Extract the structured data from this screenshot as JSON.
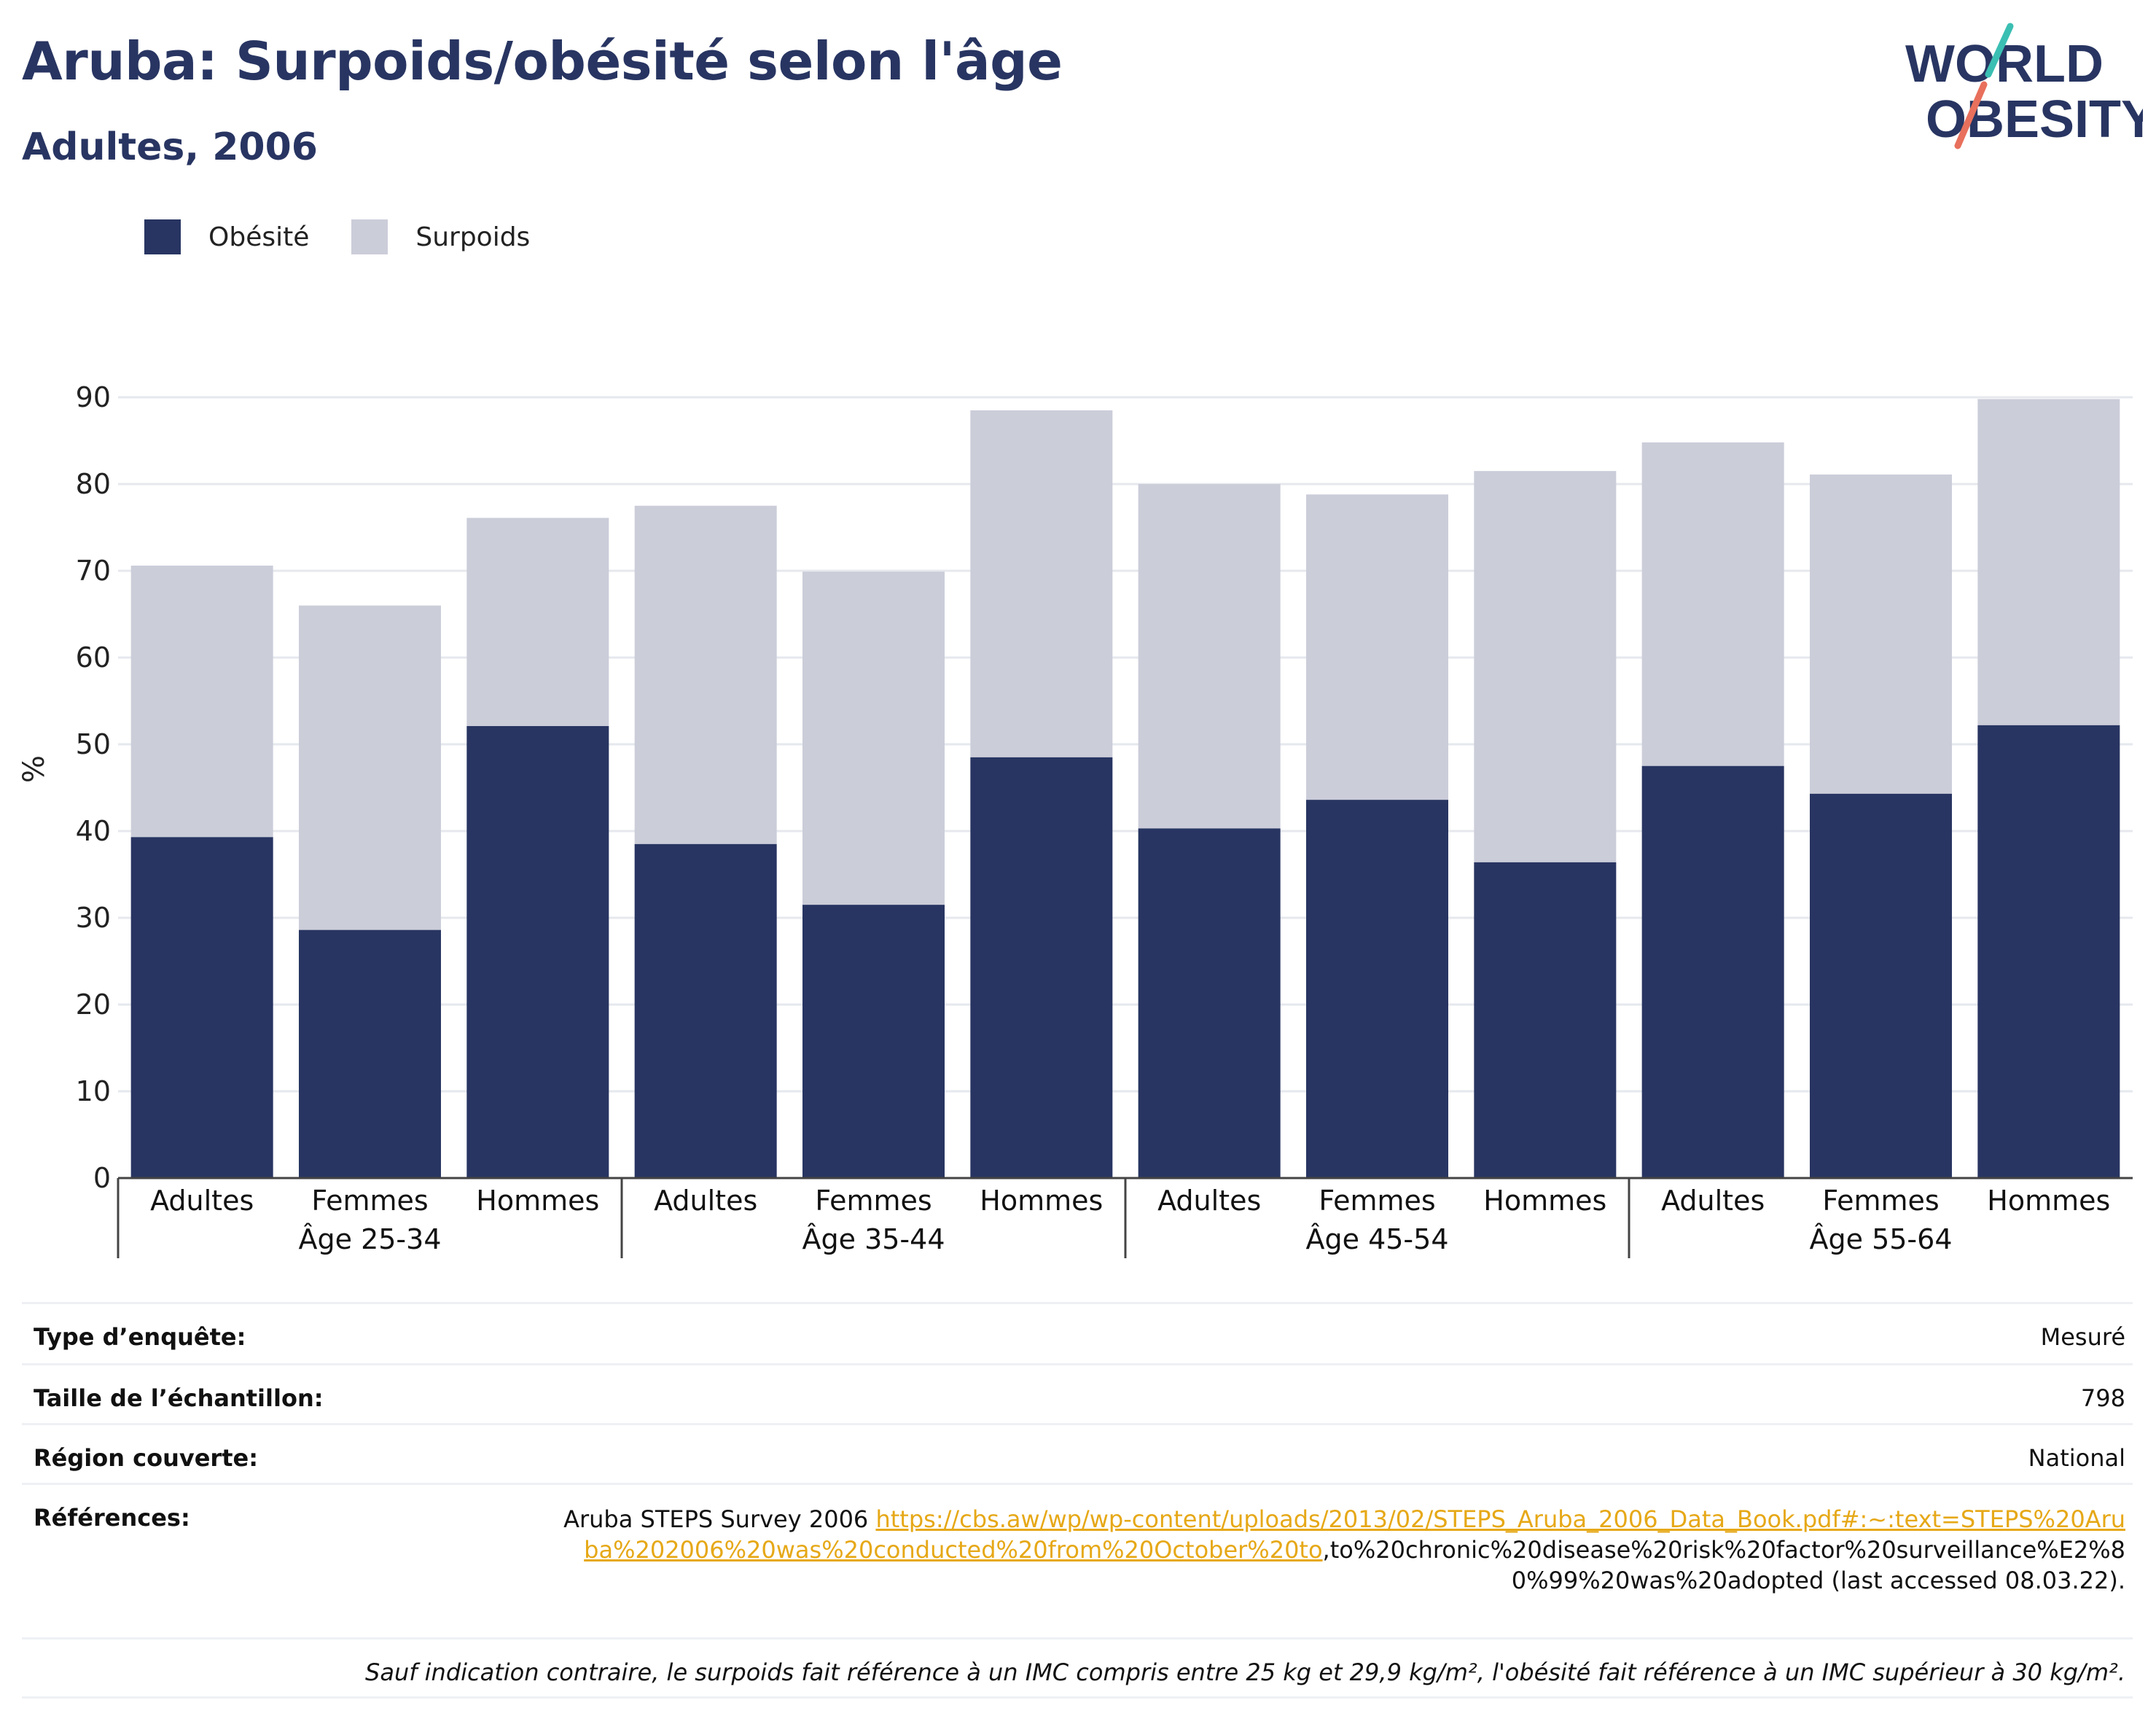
{
  "header": {
    "title": "Aruba: Surpoids/obésité selon l'âge",
    "subtitle": "Adultes, 2006"
  },
  "logo": {
    "line1": "WORLD",
    "line2": "OBESITY"
  },
  "colors": {
    "obesite": "#283562",
    "surpoids": "#cbcdd9",
    "title": "#283562",
    "link": "#e6a817"
  },
  "legend": [
    {
      "label": "Obésité",
      "color": "#283562"
    },
    {
      "label": "Surpoids",
      "color": "#cbcdd9"
    }
  ],
  "chart_data": {
    "type": "bar",
    "stacked": true,
    "ylabel": "%",
    "ylim": [
      0,
      90
    ],
    "yticks": [
      0,
      10,
      20,
      30,
      40,
      50,
      60,
      70,
      80,
      90
    ],
    "grid": true,
    "legend_position": "top-left",
    "groups": [
      "Âge 25-34",
      "Âge 35-44",
      "Âge 45-54",
      "Âge 55-64"
    ],
    "categories": [
      "Adultes",
      "Femmes",
      "Hommes",
      "Adultes",
      "Femmes",
      "Hommes",
      "Adultes",
      "Femmes",
      "Hommes",
      "Adultes",
      "Femmes",
      "Hommes"
    ],
    "series": [
      {
        "name": "Obésité",
        "values": [
          39.3,
          28.6,
          52.1,
          38.5,
          31.5,
          48.5,
          40.3,
          43.6,
          36.4,
          47.5,
          44.3,
          52.2
        ]
      },
      {
        "name": "Surpoids",
        "values": [
          31.3,
          37.4,
          24.0,
          39.0,
          38.4,
          40.0,
          39.7,
          35.2,
          45.1,
          37.3,
          36.8,
          37.6
        ]
      }
    ]
  },
  "info": {
    "survey_type": {
      "label": "Type d’enquête:",
      "value": "Mesuré"
    },
    "sample_size": {
      "label": "Taille de l’échantillon:",
      "value": "798"
    },
    "region": {
      "label": "Région couverte:",
      "value": "National"
    },
    "references": {
      "label": "Références:",
      "prefix": "Aruba STEPS Survey 2006 ",
      "link": "https://cbs.aw/wp/wp-content/uploads/2013/02/STEPS_Aruba_2006_Data_Book.pdf#:~:text=STEPS%20Aruba%202006%20was%20conducted%20from%20October%20to",
      "suffix": ",to%20chronic%20disease%20risk%20factor%20surveillance%E2%80%99%20was%20adopted (last accessed 08.03.22)."
    },
    "footnote": "Sauf indication contraire, le surpoids fait référence à un IMC compris entre 25 kg et 29,9 kg/m², l'obésité fait référence à un IMC supérieur à 30 kg/m²."
  }
}
